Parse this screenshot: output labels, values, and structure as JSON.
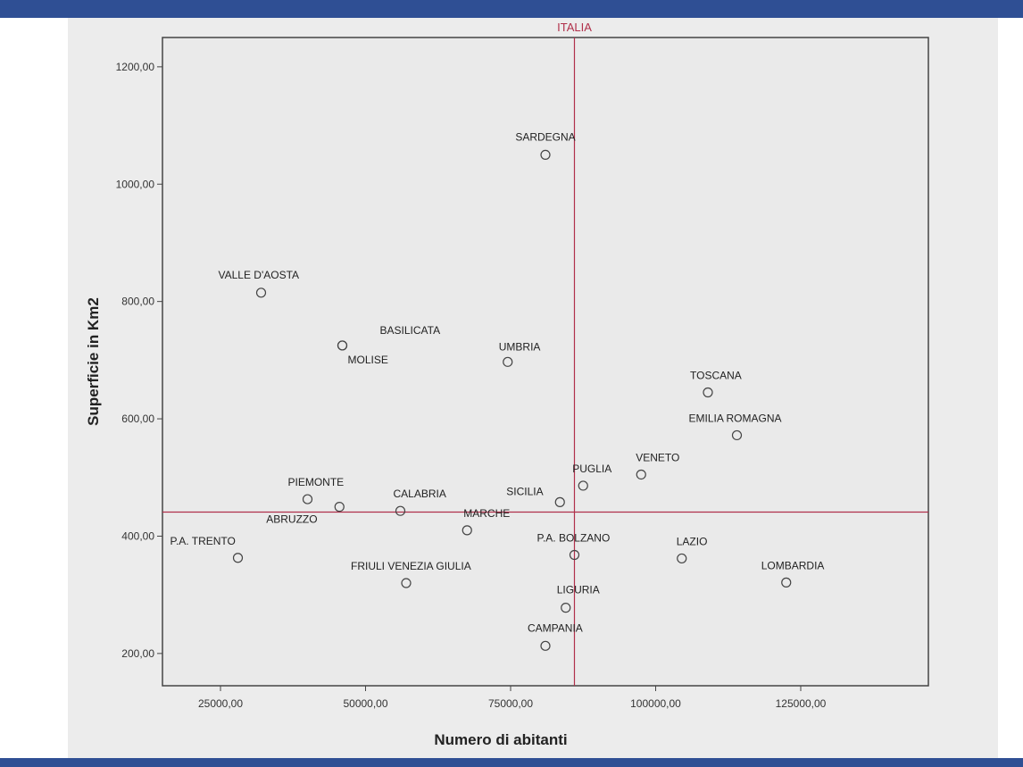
{
  "header": {
    "text": ""
  },
  "colors": {
    "bar": "#2f4f94",
    "panel": "#ececec",
    "plot_bg": "#eaeaea",
    "reference": "#b0304a",
    "point": "#444444"
  },
  "chart_data": {
    "type": "scatter",
    "xlabel": "Numero di abitanti",
    "ylabel": "Superficie in Km2",
    "xlim": [
      15000,
      147000
    ],
    "ylim": [
      145,
      1250
    ],
    "x_ticks": [
      {
        "value": 25000,
        "label": "25000,00"
      },
      {
        "value": 50000,
        "label": "50000,00"
      },
      {
        "value": 75000,
        "label": "75000,00"
      },
      {
        "value": 100000,
        "label": "100000,00"
      },
      {
        "value": 125000,
        "label": "125000,00"
      }
    ],
    "y_ticks": [
      {
        "value": 200,
        "label": "200,00"
      },
      {
        "value": 400,
        "label": "400,00"
      },
      {
        "value": 600,
        "label": "600,00"
      },
      {
        "value": 800,
        "label": "800,00"
      },
      {
        "value": 1000,
        "label": "1000,00"
      },
      {
        "value": 1200,
        "label": "1200,00"
      }
    ],
    "grid": false,
    "reference_lines": {
      "x": 86000,
      "y": 441,
      "label": "ITALIA"
    },
    "points": [
      {
        "label": "SARDEGNA",
        "x": 81000,
        "y": 1050
      },
      {
        "label": "VALLE D'AOSTA",
        "x": 32000,
        "y": 815
      },
      {
        "label": "BASILICATA",
        "x": 46000,
        "y": 725
      },
      {
        "label": "MOLISE",
        "x": 46000,
        "y": 725
      },
      {
        "label": "UMBRIA",
        "x": 74500,
        "y": 697
      },
      {
        "label": "TOSCANA",
        "x": 109000,
        "y": 645
      },
      {
        "label": "EMILIA ROMAGNA",
        "x": 114000,
        "y": 572
      },
      {
        "label": "VENETO",
        "x": 97500,
        "y": 505
      },
      {
        "label": "PUGLIA",
        "x": 87500,
        "y": 486
      },
      {
        "label": "PIEMONTE",
        "x": 40000,
        "y": 463
      },
      {
        "label": "SICILIA",
        "x": 83500,
        "y": 458
      },
      {
        "label": "ABRUZZO",
        "x": 45500,
        "y": 450
      },
      {
        "label": "CALABRIA",
        "x": 56000,
        "y": 443
      },
      {
        "label": "MARCHE",
        "x": 67500,
        "y": 410
      },
      {
        "label": "P.A. TRENTO",
        "x": 28000,
        "y": 363
      },
      {
        "label": "P.A. BOLZANO",
        "x": 86000,
        "y": 368
      },
      {
        "label": "LAZIO",
        "x": 104500,
        "y": 362
      },
      {
        "label": "FRIULI VENEZIA GIULIA",
        "x": 57000,
        "y": 320
      },
      {
        "label": "LOMBARDIA",
        "x": 122500,
        "y": 321
      },
      {
        "label": "LIGURIA",
        "x": 84500,
        "y": 278
      },
      {
        "label": "CAMPANIA",
        "x": 81000,
        "y": 213
      }
    ]
  }
}
